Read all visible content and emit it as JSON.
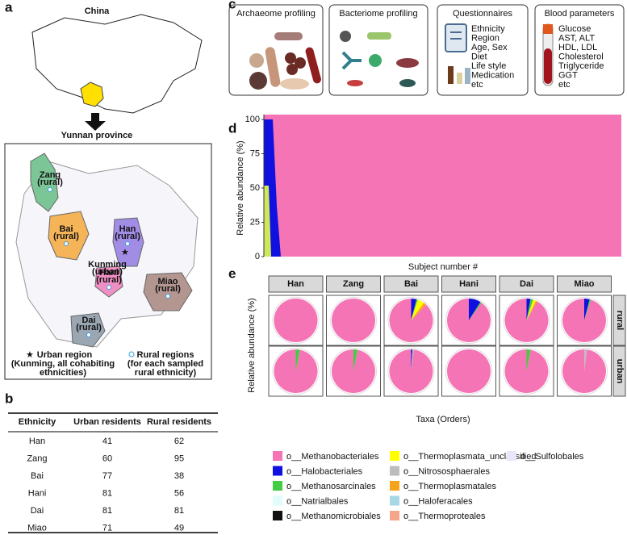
{
  "panel_a": {
    "label": "a",
    "country": "China",
    "province": "Yunnan province",
    "regions": [
      {
        "name": "Zang",
        "type": "(rural)"
      },
      {
        "name": "Bai",
        "type": "(rural)"
      },
      {
        "name": "Han",
        "type": "(rural)"
      },
      {
        "name": "Hani",
        "type": "(rural)"
      },
      {
        "name": "Miao",
        "type": "(rural)"
      },
      {
        "name": "Dai",
        "type": "(rural)"
      }
    ],
    "urban": {
      "name": "Kunming",
      "type": "(urban)"
    },
    "legend": {
      "urban": [
        "Urban region",
        "(Kunming, all cohabiting",
        "ethnicities)"
      ],
      "rural": [
        "Rural regions",
        "(for each sampled",
        "rural ethnicity)"
      ]
    }
  },
  "panel_b": {
    "label": "b",
    "table": {
      "header": [
        "Ethnicity",
        "Urban residents",
        "Rural residents"
      ],
      "rows": [
        [
          "Han",
          41,
          62
        ],
        [
          "Zang",
          60,
          95
        ],
        [
          "Bai",
          77,
          38
        ],
        [
          "Hani",
          81,
          56
        ],
        [
          "Dai",
          81,
          81
        ],
        [
          "Miao",
          71,
          49
        ]
      ]
    }
  },
  "panel_c": {
    "label": "c",
    "boxes": [
      {
        "title": "Archaeome profiling"
      },
      {
        "title": "Bacteriome  profiling"
      },
      {
        "title": "Questionnaires",
        "items": [
          "Ethnicity",
          "Region",
          "Age, Sex",
          "Diet",
          "Life style",
          "Medication",
          "etc"
        ]
      },
      {
        "title": "Blood parameters",
        "items": [
          "Glucose",
          "AST, ALT",
          "HDL, LDL",
          "Cholesterol",
          "Triglyceride",
          "GGT",
          "etc"
        ]
      }
    ]
  },
  "chart_data": [
    {
      "type": "area",
      "label": "d",
      "y_label": "Relative abundance (%)",
      "x_label": "Subject number #",
      "ylim": [
        0,
        100
      ],
      "yticks": [
        0,
        25,
        50,
        75,
        100
      ],
      "color": "#f574b5"
    },
    {
      "type": "pie",
      "label": "e",
      "y_label": "Relative abundance (%)",
      "x_label": "Taxa (Orders)",
      "columns": [
        "Han",
        "Zang",
        "Bai",
        "Hani",
        "Dai",
        "Miao"
      ],
      "rows": [
        "rural",
        "urban"
      ],
      "series": [
        {
          "name": "o__Methanobacteriales",
          "color": "#f574b5"
        },
        {
          "name": "o__Halobacteriales",
          "color": "#1010e0"
        },
        {
          "name": "o__Methanosarcinales",
          "color": "#44cc44"
        },
        {
          "name": "o__Natrialbales",
          "color": "#e2fbfb"
        },
        {
          "name": "o__Methanomicrobiales",
          "color": "#111111"
        },
        {
          "name": "o__Thermoplasmata_unclassified",
          "color": "#ffff00"
        },
        {
          "name": "o__Nitrososphaerales",
          "color": "#bdbdbd"
        },
        {
          "name": "o__Thermoplasmatales",
          "color": "#f5a31a"
        },
        {
          "name": "o__Haloferacales",
          "color": "#a8d8e6"
        },
        {
          "name": "o__Thermoproteales",
          "color": "#f5a58a"
        },
        {
          "name": "o__Sulfolobales",
          "color": "#e8e6fa"
        }
      ],
      "values": [
        [
          [
            100,
            0,
            0,
            0,
            0,
            0,
            0,
            0,
            0,
            0,
            0
          ],
          [
            100,
            0,
            0,
            0,
            0,
            0,
            0,
            0,
            0,
            0,
            0
          ],
          [
            88,
            4,
            1,
            0,
            0,
            5,
            0,
            2,
            0,
            0,
            0
          ],
          [
            90,
            9,
            1,
            0,
            0,
            0,
            0,
            0,
            0,
            0,
            0
          ],
          [
            92,
            3,
            2,
            0,
            0,
            2,
            0,
            1,
            0,
            0,
            0
          ],
          [
            95,
            4,
            1,
            0,
            0,
            0,
            0,
            0,
            0,
            0,
            0
          ]
        ],
        [
          [
            97,
            0,
            3,
            0,
            0,
            0,
            0,
            0,
            0,
            0,
            0
          ],
          [
            97,
            0,
            3,
            0,
            0,
            0,
            0,
            0,
            0,
            0,
            0
          ],
          [
            98,
            1,
            0,
            0,
            0,
            0,
            1,
            0,
            0,
            0,
            0
          ],
          [
            100,
            0,
            0,
            0,
            0,
            0,
            0,
            0,
            0,
            0,
            0
          ],
          [
            97,
            0,
            3,
            0,
            0,
            0,
            0,
            0,
            0,
            0,
            0
          ],
          [
            98,
            0,
            0,
            0,
            0,
            0,
            2,
            0,
            0,
            0,
            0
          ]
        ]
      ]
    }
  ]
}
